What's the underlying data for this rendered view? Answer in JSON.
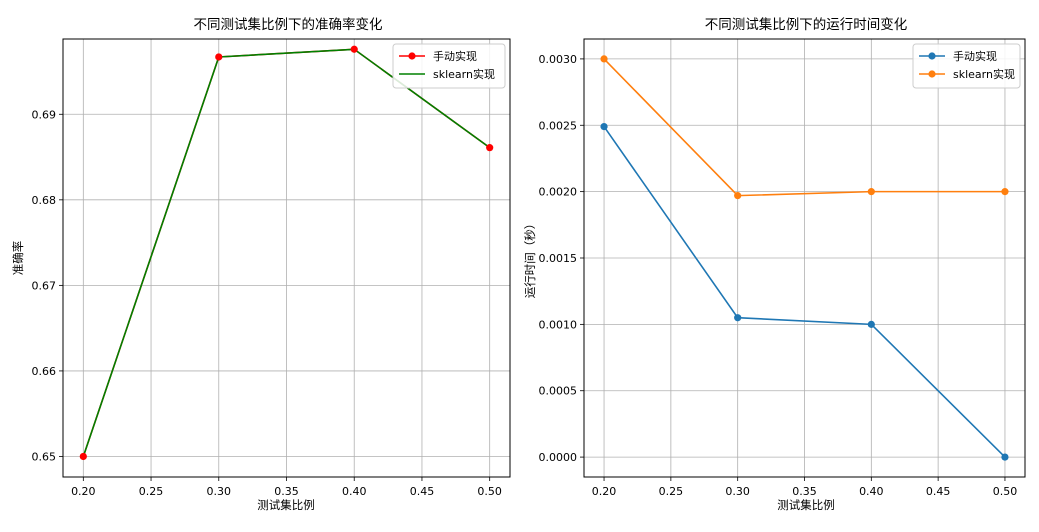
{
  "chart_data": [
    {
      "type": "line",
      "title": "不同测试集比例下的准确率变化",
      "xlabel": "测试集比例",
      "ylabel": "准确率",
      "x": [
        0.2,
        0.3,
        0.4,
        0.5
      ],
      "xticks": [
        "0.20",
        "0.25",
        "0.30",
        "0.35",
        "0.40",
        "0.45",
        "0.50"
      ],
      "xlim": [
        0.185,
        0.515
      ],
      "yticks": [
        "0.65",
        "0.66",
        "0.67",
        "0.68",
        "0.69"
      ],
      "ylim": [
        0.6476,
        0.6988
      ],
      "grid": true,
      "legend_position": "top-right",
      "series": [
        {
          "name": "手动实现",
          "values": [
            0.65,
            0.6967,
            0.6976,
            0.6861
          ],
          "color": "#ff0000",
          "marker": "circle"
        },
        {
          "name": "sklearn实现",
          "values": [
            0.65,
            0.6967,
            0.6976,
            0.6861
          ],
          "color": "#008000",
          "marker": "none"
        }
      ]
    },
    {
      "type": "line",
      "title": "不同测试集比例下的运行时间变化",
      "xlabel": "测试集比例",
      "ylabel": "运行时间（秒）",
      "x": [
        0.2,
        0.3,
        0.4,
        0.5
      ],
      "xticks": [
        "0.20",
        "0.25",
        "0.30",
        "0.35",
        "0.40",
        "0.45",
        "0.50"
      ],
      "xlim": [
        0.185,
        0.515
      ],
      "yticks": [
        "0.0000",
        "0.0005",
        "0.0010",
        "0.0015",
        "0.0020",
        "0.0025",
        "0.0030"
      ],
      "ylim": [
        -0.00015,
        0.00315
      ],
      "grid": true,
      "legend_position": "top-right",
      "series": [
        {
          "name": "手动实现",
          "values": [
            0.00249,
            0.00105,
            0.001,
            0.0
          ],
          "color": "#1f77b4",
          "marker": "circle"
        },
        {
          "name": "sklearn实现",
          "values": [
            0.003,
            0.00197,
            0.002,
            0.002
          ],
          "color": "#ff7f0e",
          "marker": "circle"
        }
      ]
    }
  ]
}
